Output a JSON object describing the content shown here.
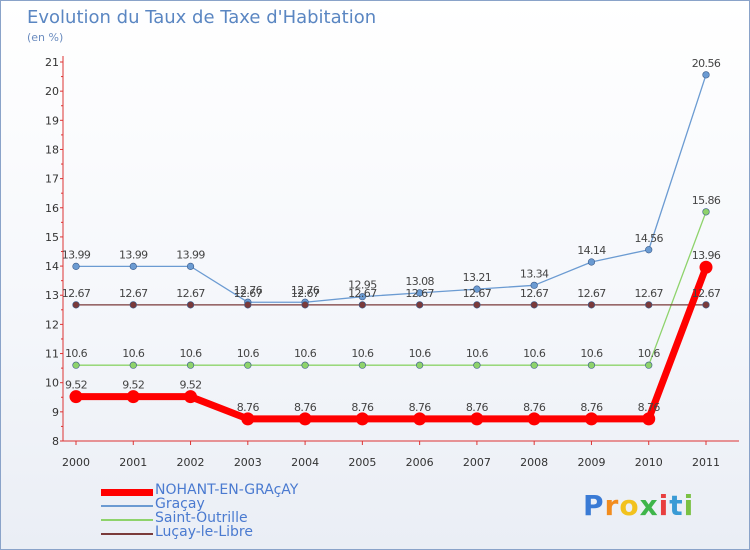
{
  "title": "Evolution du Taux de Taxe d'Habitation",
  "subtitle": "(en %)",
  "logo_text": "Proxiti",
  "chart_data": {
    "type": "line",
    "title": "Evolution du Taux de Taxe d'Habitation",
    "ylabel": "(en %)",
    "xlabel": "",
    "x": [
      "2000",
      "2001",
      "2002",
      "2003",
      "2004",
      "2005",
      "2006",
      "2007",
      "2008",
      "2009",
      "2010",
      "2011"
    ],
    "ylim": [
      8,
      21
    ],
    "yticks": [
      8,
      9,
      10,
      11,
      12,
      13,
      14,
      15,
      16,
      17,
      18,
      19,
      20,
      21
    ],
    "grid": false,
    "legend_position": "bottom-left",
    "series": [
      {
        "name": "NOHANT-EN-GRAçAY",
        "color": "#ff0000",
        "values": [
          9.52,
          9.52,
          9.52,
          8.76,
          8.76,
          8.76,
          8.76,
          8.76,
          8.76,
          8.76,
          8.76,
          13.96
        ],
        "labels": [
          "9.52",
          "9.52",
          "9.52",
          "8.76",
          "8.76",
          "8.76",
          "8.76",
          "8.76",
          "8.76",
          "8.76",
          "8.76",
          "13.96"
        ]
      },
      {
        "name": "Graçay",
        "color": "#6b9bd2",
        "values": [
          13.99,
          13.99,
          13.99,
          12.76,
          12.76,
          12.95,
          13.08,
          13.21,
          13.34,
          14.14,
          14.56,
          20.56
        ],
        "labels": [
          "13.99",
          "13.99",
          "13.99",
          "12.76",
          "12.76",
          "12.95",
          "13.08",
          "13.21",
          "13.34",
          "14.14",
          "14.56",
          "20.56"
        ]
      },
      {
        "name": "Saint-Outrille",
        "color": "#8ed36b",
        "values": [
          10.6,
          10.6,
          10.6,
          10.6,
          10.6,
          10.6,
          10.6,
          10.6,
          10.6,
          10.6,
          10.6,
          15.86
        ],
        "labels": [
          "10.6",
          "10.6",
          "10.6",
          "10.6",
          "10.6",
          "10.6",
          "10.6",
          "10.6",
          "10.6",
          "10.6",
          "10.6",
          "15.86"
        ]
      },
      {
        "name": "Luçay-le-Libre",
        "color": "#7a3a3a",
        "values": [
          12.67,
          12.67,
          12.67,
          12.67,
          12.67,
          12.67,
          12.67,
          12.67,
          12.67,
          12.67,
          12.67,
          12.67
        ],
        "labels": [
          "12.67",
          "12.67",
          "12.67",
          "12.67",
          "12.67",
          "12.67",
          "12.67",
          "12.67",
          "12.67",
          "12.67",
          "12.67",
          "12.67"
        ]
      }
    ]
  }
}
